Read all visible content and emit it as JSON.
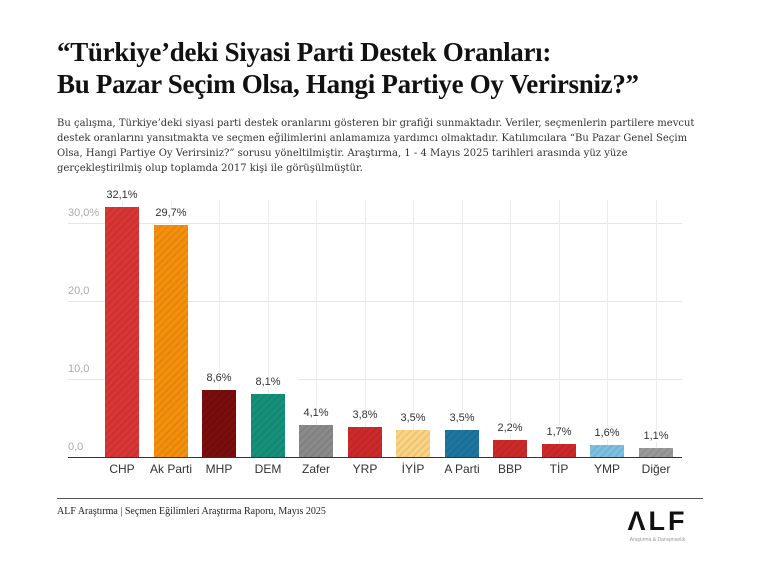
{
  "header": {
    "title_line1": "“Türkiye’deki Siyasi Parti Destek Oranları:",
    "title_line2": "Bu Pazar Seçim Olsa, Hangi Partiye Oy Verirsniz?”",
    "description": "Bu çalışma, Türkiye’deki siyasi parti destek oranlarını gösteren bir grafiği sunmaktadır. Veriler, seçmenlerin  partilere mevcut destek oranlarını yansıtmakta ve seçmen eğilimlerini anlamamıza yardımcı olmaktadır. Katılımcılara “Bu Pazar Genel Seçim Olsa, Hangi Partiye Oy Verirsiniz?” sorusu yöneltilmiştir. Araştırma, 1 - 4 Mayıs 2025 tarihleri arasında yüz yüze gerçekleştirilmiş olup toplamda 2017 kişi ile görüşülmüştür."
  },
  "chart_data": {
    "type": "bar",
    "title": "Türkiye’deki Siyasi Parti Destek Oranları: Bu Pazar Seçim Olsa, Hangi Partiye Oy Verirsniz?",
    "xlabel": "",
    "ylabel": "",
    "ylim": [
      0,
      32.1
    ],
    "grid": true,
    "yticks": [
      "0,0",
      "10,0",
      "20,0",
      "30,0%"
    ],
    "categories": [
      "CHP",
      "Ak Parti",
      "MHP",
      "DEM",
      "Zafer",
      "YRP",
      "İYİP",
      "A Parti",
      "BBP",
      "TİP",
      "YMP",
      "Diğer"
    ],
    "values": [
      32.1,
      29.7,
      8.6,
      8.1,
      4.1,
      3.8,
      3.5,
      3.5,
      2.2,
      1.7,
      1.6,
      1.1
    ],
    "value_labels": [
      "32,1%",
      "29,7%",
      "8,6%",
      "8,1%",
      "4,1%",
      "3,8%",
      "3,5%",
      "3,5%",
      "2,2%",
      "1,7%",
      "1,6%",
      "1,1%"
    ],
    "colors": [
      "#d93636",
      "#f5900c",
      "#7a0d0d",
      "#15917a",
      "#8a8a8a",
      "#cc2a2a",
      "#fcd483",
      "#1c76a0",
      "#cc2a2a",
      "#cc2a2a",
      "#7ec0e0",
      "#9a9a9a"
    ]
  },
  "footer": {
    "source": "ALF Araştırma | Seçmen Eğilimleri Araştırma Raporu, Mayıs 2025",
    "logo_text": "ΛLF",
    "logo_sub": "Araştırma & Danışmanlık"
  }
}
